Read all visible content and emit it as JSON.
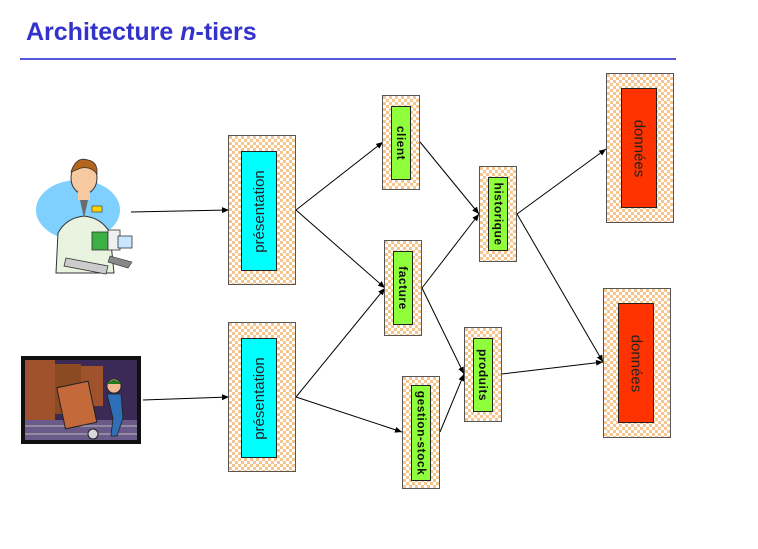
{
  "slide": {
    "title_prefix": "Architecture ",
    "title_italic": "n",
    "title_suffix": "-tiers"
  },
  "nodes": {
    "presentation_1": "présentation",
    "presentation_2": "présentation",
    "client": "client",
    "facture": "facture",
    "gestion_stock": "gestion-stock",
    "historique": "historique",
    "produits": "produits",
    "donnees_1": "données",
    "donnees_2": "données"
  },
  "colors": {
    "title": "#3333cc",
    "presentation": "#00ffff",
    "service": "#8fff3c",
    "data": "#ff3300",
    "pattern": "#f6c58e"
  },
  "clipart": [
    "user-clipart",
    "warehouse-worker-clipart"
  ]
}
